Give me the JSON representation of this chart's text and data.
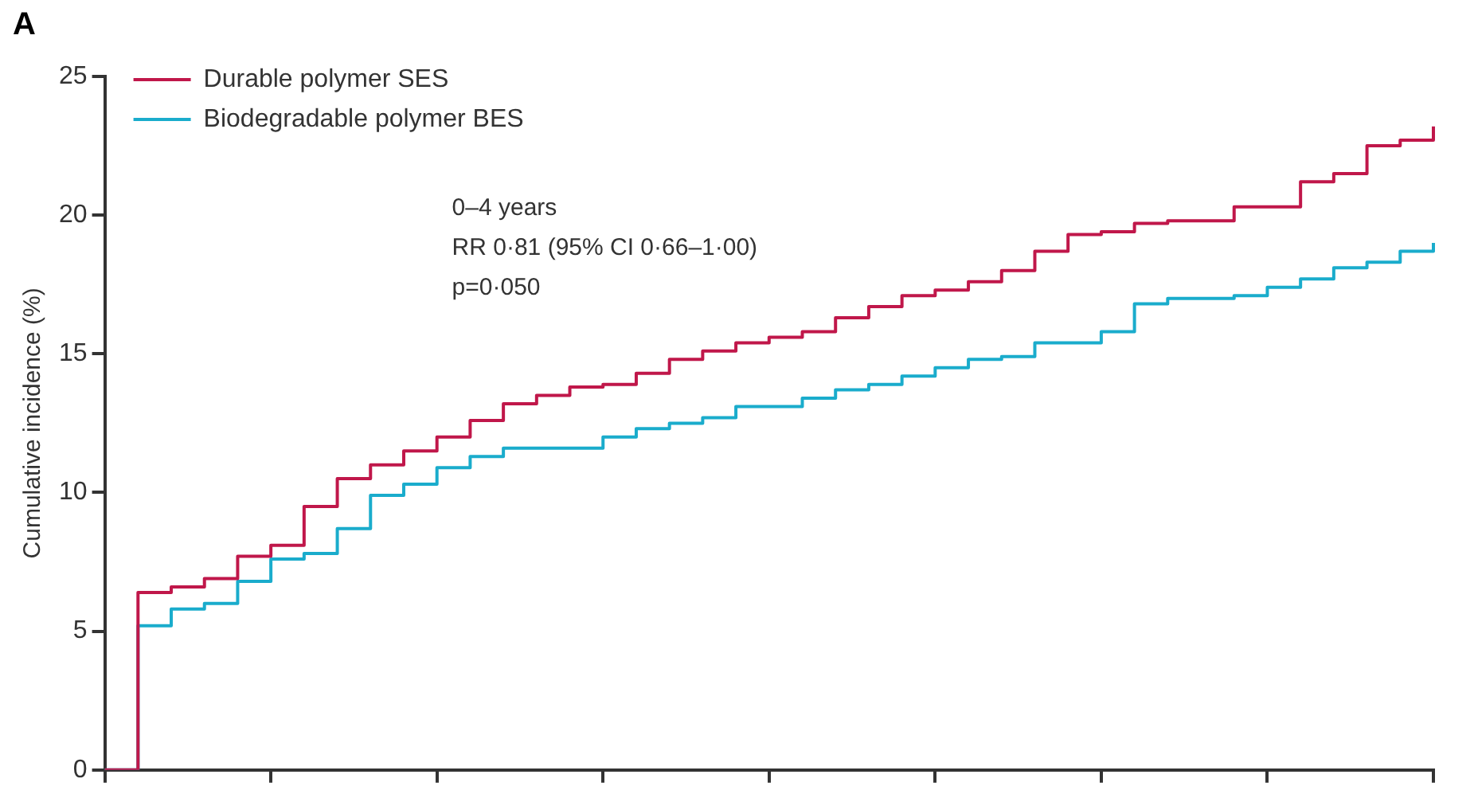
{
  "chart_data": {
    "type": "step",
    "title": "A",
    "ylabel": "Cumulative incidence (%)",
    "categories": [
      null,
      null,
      null,
      null,
      null,
      null,
      null,
      null,
      null,
      null,
      null,
      null,
      null,
      null,
      null,
      null,
      null,
      null,
      null,
      null,
      null,
      null,
      null,
      null,
      null,
      null,
      null,
      null,
      null,
      null,
      null,
      null,
      null,
      null,
      null,
      null,
      null,
      null,
      null,
      null,
      null
    ],
    "series": [
      {
        "name": "Durable polymer SES",
        "color": "#c0174a",
        "values": [
          0,
          6.4,
          6.6,
          6.9,
          7.7,
          8.1,
          9.5,
          10.5,
          11.0,
          11.5,
          12.0,
          12.6,
          13.2,
          13.5,
          13.8,
          13.9,
          14.3,
          14.8,
          15.1,
          15.4,
          15.6,
          15.8,
          16.3,
          16.7,
          17.1,
          17.3,
          17.6,
          18.0,
          18.7,
          19.3,
          19.4,
          19.7,
          19.8,
          19.8,
          20.3,
          20.3,
          21.2,
          21.5,
          22.5,
          22.7,
          23.2
        ]
      },
      {
        "name": "Biodegradable polymer BES",
        "color": "#1aaccc",
        "values": [
          0,
          5.2,
          5.8,
          6.0,
          6.8,
          7.6,
          7.8,
          8.7,
          9.9,
          10.3,
          10.9,
          11.3,
          11.6,
          11.6,
          11.6,
          12.0,
          12.3,
          12.5,
          12.7,
          13.1,
          13.1,
          13.4,
          13.7,
          13.9,
          14.2,
          14.5,
          14.8,
          14.9,
          15.4,
          15.4,
          15.8,
          16.8,
          17.0,
          17.0,
          17.1,
          17.4,
          17.7,
          18.1,
          18.3,
          18.7,
          19.0
        ]
      }
    ],
    "ylim": [
      0,
      25
    ],
    "yticks": [
      0,
      5,
      10,
      15,
      20,
      25
    ],
    "grid": false,
    "legend": "top left",
    "tick_labels": "y",
    "marker": "none",
    "line_style": "solid",
    "annotations": [
      "0–4 years",
      "RR 0·81 (95% CI 0·66–1·00)",
      "p=0·050"
    ]
  }
}
